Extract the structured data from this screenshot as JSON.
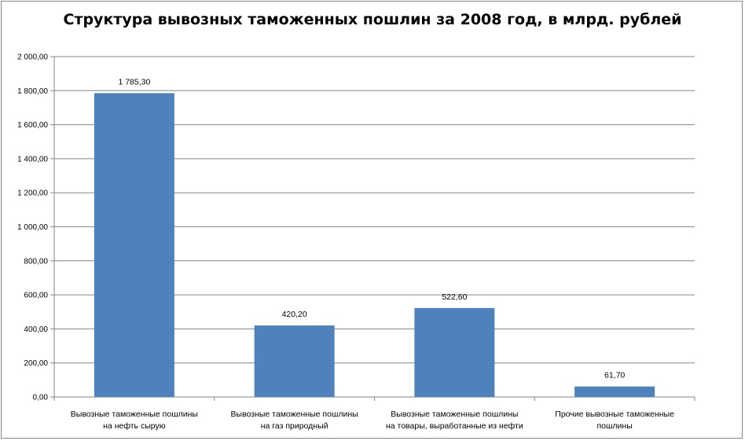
{
  "chart_data": {
    "type": "bar",
    "title": "Структура вывозных таможенных пошлин за 2008 год, в млрд. рублей",
    "categories": [
      [
        "Вывозные таможенные пошлины",
        "на нефть сырую"
      ],
      [
        "Вывозные таможенные пошлины",
        "на газ природный"
      ],
      [
        "Вывозные таможенные пошлины",
        "на товары, выработанные из нефти"
      ],
      [
        "Прочие вывозные таможенные",
        "пошлины"
      ]
    ],
    "values": [
      1785.3,
      420.2,
      522.6,
      61.7
    ],
    "data_labels": [
      "1 785,30",
      "420,20",
      "522,60",
      "61,70"
    ],
    "ylim": [
      0,
      2000
    ],
    "yticks": [
      0,
      200,
      400,
      600,
      800,
      1000,
      1200,
      1400,
      1600,
      1800,
      2000
    ],
    "ytick_labels": [
      "0,00",
      "200,00",
      "400,00",
      "600,00",
      "800,00",
      "1 000,00",
      "1 200,00",
      "1 400,00",
      "1 600,00",
      "1 800,00",
      "2 000,00"
    ],
    "grid": true,
    "legend": "none",
    "bar_color": "#4f81bd"
  }
}
